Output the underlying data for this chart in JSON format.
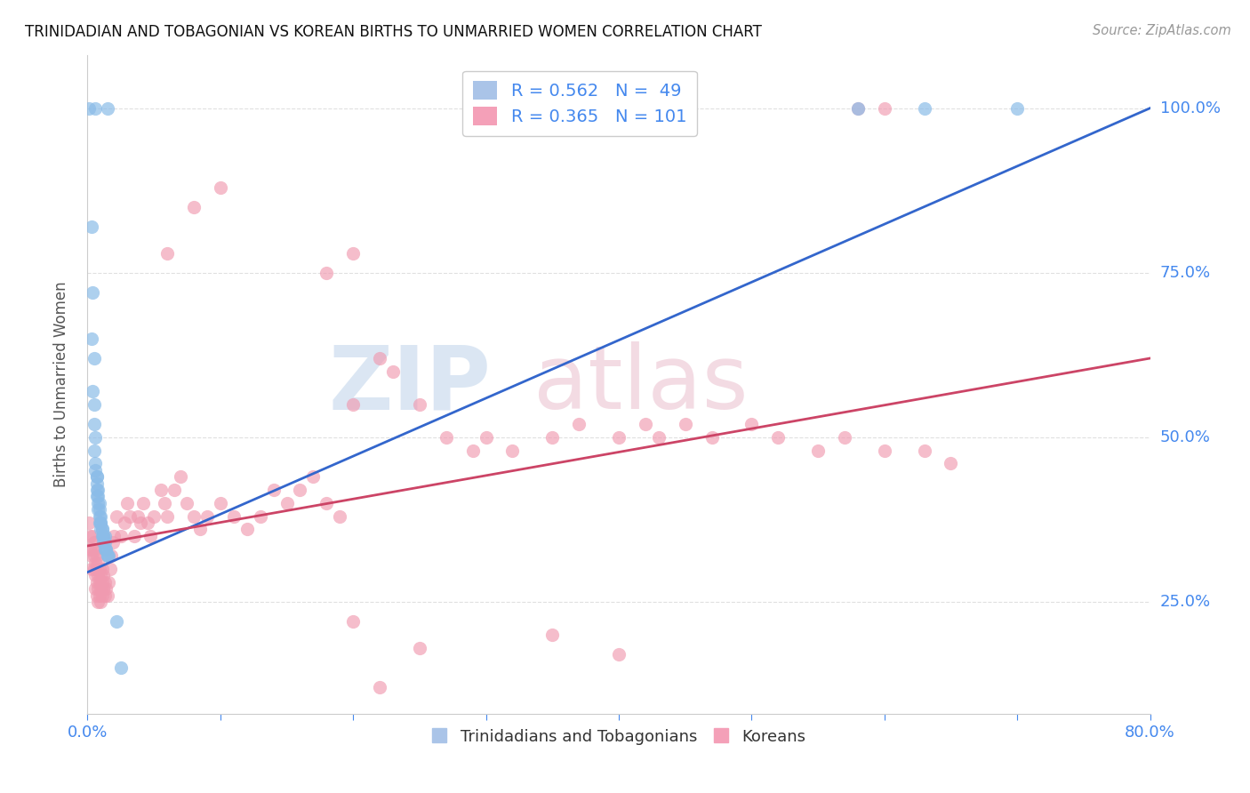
{
  "title": "TRINIDADIAN AND TOBAGONIAN VS KOREAN BIRTHS TO UNMARRIED WOMEN CORRELATION CHART",
  "source": "Source: ZipAtlas.com",
  "ylabel": "Births to Unmarried Women",
  "ytick_labels": [
    "100.0%",
    "75.0%",
    "50.0%",
    "25.0%"
  ],
  "ytick_values": [
    1.0,
    0.75,
    0.5,
    0.25
  ],
  "xlim": [
    0.0,
    0.8
  ],
  "ylim": [
    0.08,
    1.08
  ],
  "blue_scatter": [
    [
      0.001,
      1.0
    ],
    [
      0.006,
      1.0
    ],
    [
      0.015,
      1.0
    ],
    [
      0.003,
      0.82
    ],
    [
      0.004,
      0.72
    ],
    [
      0.003,
      0.65
    ],
    [
      0.005,
      0.62
    ],
    [
      0.004,
      0.57
    ],
    [
      0.005,
      0.55
    ],
    [
      0.005,
      0.52
    ],
    [
      0.006,
      0.5
    ],
    [
      0.005,
      0.48
    ],
    [
      0.006,
      0.46
    ],
    [
      0.006,
      0.45
    ],
    [
      0.007,
      0.44
    ],
    [
      0.007,
      0.44
    ],
    [
      0.007,
      0.43
    ],
    [
      0.007,
      0.42
    ],
    [
      0.008,
      0.42
    ],
    [
      0.007,
      0.41
    ],
    [
      0.008,
      0.41
    ],
    [
      0.008,
      0.4
    ],
    [
      0.009,
      0.4
    ],
    [
      0.008,
      0.39
    ],
    [
      0.009,
      0.39
    ],
    [
      0.009,
      0.38
    ],
    [
      0.01,
      0.38
    ],
    [
      0.009,
      0.37
    ],
    [
      0.01,
      0.37
    ],
    [
      0.01,
      0.37
    ],
    [
      0.011,
      0.36
    ],
    [
      0.01,
      0.36
    ],
    [
      0.011,
      0.36
    ],
    [
      0.011,
      0.35
    ],
    [
      0.012,
      0.35
    ],
    [
      0.012,
      0.35
    ],
    [
      0.013,
      0.35
    ],
    [
      0.012,
      0.34
    ],
    [
      0.013,
      0.34
    ],
    [
      0.013,
      0.33
    ],
    [
      0.014,
      0.33
    ],
    [
      0.014,
      0.33
    ],
    [
      0.015,
      0.32
    ],
    [
      0.015,
      0.32
    ],
    [
      0.016,
      0.32
    ],
    [
      0.022,
      0.22
    ],
    [
      0.025,
      0.15
    ],
    [
      0.58,
      1.0
    ],
    [
      0.63,
      1.0
    ],
    [
      0.7,
      1.0
    ]
  ],
  "pink_scatter": [
    [
      0.001,
      0.37
    ],
    [
      0.002,
      0.35
    ],
    [
      0.002,
      0.33
    ],
    [
      0.003,
      0.32
    ],
    [
      0.003,
      0.3
    ],
    [
      0.004,
      0.35
    ],
    [
      0.004,
      0.33
    ],
    [
      0.005,
      0.34
    ],
    [
      0.005,
      0.32
    ],
    [
      0.005,
      0.3
    ],
    [
      0.006,
      0.33
    ],
    [
      0.006,
      0.31
    ],
    [
      0.006,
      0.29
    ],
    [
      0.006,
      0.27
    ],
    [
      0.007,
      0.32
    ],
    [
      0.007,
      0.3
    ],
    [
      0.007,
      0.28
    ],
    [
      0.007,
      0.26
    ],
    [
      0.008,
      0.31
    ],
    [
      0.008,
      0.29
    ],
    [
      0.008,
      0.27
    ],
    [
      0.008,
      0.25
    ],
    [
      0.009,
      0.3
    ],
    [
      0.009,
      0.28
    ],
    [
      0.009,
      0.26
    ],
    [
      0.01,
      0.29
    ],
    [
      0.01,
      0.27
    ],
    [
      0.01,
      0.25
    ],
    [
      0.011,
      0.3
    ],
    [
      0.011,
      0.28
    ],
    [
      0.011,
      0.26
    ],
    [
      0.012,
      0.29
    ],
    [
      0.012,
      0.27
    ],
    [
      0.013,
      0.28
    ],
    [
      0.013,
      0.26
    ],
    [
      0.014,
      0.27
    ],
    [
      0.015,
      0.26
    ],
    [
      0.016,
      0.28
    ],
    [
      0.017,
      0.3
    ],
    [
      0.018,
      0.32
    ],
    [
      0.019,
      0.34
    ],
    [
      0.02,
      0.35
    ],
    [
      0.022,
      0.38
    ],
    [
      0.025,
      0.35
    ],
    [
      0.028,
      0.37
    ],
    [
      0.03,
      0.4
    ],
    [
      0.032,
      0.38
    ],
    [
      0.035,
      0.35
    ],
    [
      0.038,
      0.38
    ],
    [
      0.04,
      0.37
    ],
    [
      0.042,
      0.4
    ],
    [
      0.045,
      0.37
    ],
    [
      0.047,
      0.35
    ],
    [
      0.05,
      0.38
    ],
    [
      0.055,
      0.42
    ],
    [
      0.058,
      0.4
    ],
    [
      0.06,
      0.38
    ],
    [
      0.065,
      0.42
    ],
    [
      0.07,
      0.44
    ],
    [
      0.075,
      0.4
    ],
    [
      0.08,
      0.38
    ],
    [
      0.085,
      0.36
    ],
    [
      0.09,
      0.38
    ],
    [
      0.1,
      0.4
    ],
    [
      0.11,
      0.38
    ],
    [
      0.12,
      0.36
    ],
    [
      0.13,
      0.38
    ],
    [
      0.14,
      0.42
    ],
    [
      0.15,
      0.4
    ],
    [
      0.16,
      0.42
    ],
    [
      0.17,
      0.44
    ],
    [
      0.18,
      0.4
    ],
    [
      0.19,
      0.38
    ],
    [
      0.2,
      0.55
    ],
    [
      0.22,
      0.62
    ],
    [
      0.23,
      0.6
    ],
    [
      0.25,
      0.55
    ],
    [
      0.27,
      0.5
    ],
    [
      0.29,
      0.48
    ],
    [
      0.3,
      0.5
    ],
    [
      0.32,
      0.48
    ],
    [
      0.35,
      0.5
    ],
    [
      0.37,
      0.52
    ],
    [
      0.4,
      0.5
    ],
    [
      0.42,
      0.52
    ],
    [
      0.43,
      0.5
    ],
    [
      0.45,
      0.52
    ],
    [
      0.47,
      0.5
    ],
    [
      0.5,
      0.52
    ],
    [
      0.52,
      0.5
    ],
    [
      0.55,
      0.48
    ],
    [
      0.57,
      0.5
    ],
    [
      0.6,
      0.48
    ],
    [
      0.63,
      0.48
    ],
    [
      0.65,
      0.46
    ],
    [
      0.58,
      1.0
    ],
    [
      0.6,
      1.0
    ],
    [
      0.18,
      0.75
    ],
    [
      0.2,
      0.78
    ],
    [
      0.08,
      0.85
    ],
    [
      0.1,
      0.88
    ],
    [
      0.06,
      0.78
    ],
    [
      0.35,
      0.2
    ],
    [
      0.4,
      0.17
    ],
    [
      0.22,
      0.12
    ],
    [
      0.25,
      0.18
    ],
    [
      0.2,
      0.22
    ]
  ],
  "blue_line_x": [
    0.0,
    0.8
  ],
  "blue_line_y": [
    0.295,
    1.0
  ],
  "pink_line_x": [
    0.0,
    0.8
  ],
  "pink_line_y": [
    0.335,
    0.62
  ],
  "background_color": "#ffffff",
  "grid_color": "#e0e0e0",
  "blue_color": "#8bbce8",
  "pink_color": "#f09ab0",
  "blue_line_color": "#3366cc",
  "pink_line_color": "#cc4466",
  "title_color": "#111111",
  "axis_label_color": "#4488ee",
  "ylabel_color": "#555555"
}
